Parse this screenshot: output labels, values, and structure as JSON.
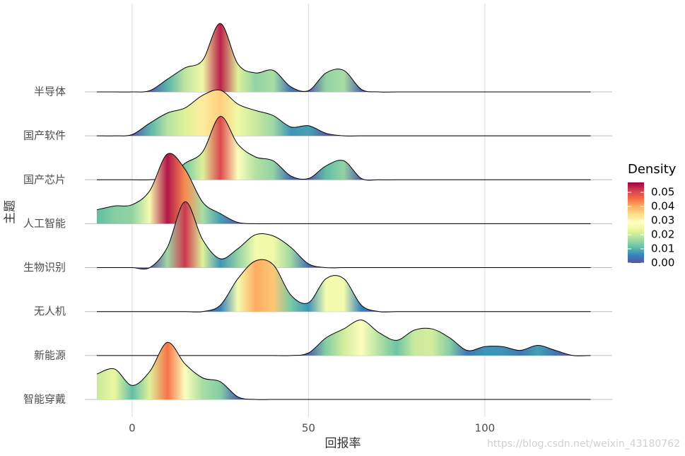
{
  "chart_data": {
    "type": "ridgeline",
    "x_label": "回报率",
    "y_label": "主题",
    "x": [
      -10,
      -5,
      0,
      5,
      10,
      15,
      20,
      25,
      30,
      35,
      40,
      45,
      50,
      55,
      60,
      65,
      70,
      75,
      80,
      85,
      90,
      95,
      100,
      105,
      110,
      115,
      120,
      125,
      130
    ],
    "series": [
      {
        "name": "半导体",
        "values": [
          0,
          0,
          0,
          0.001,
          0.01,
          0.019,
          0.025,
          0.054,
          0.022,
          0.015,
          0.017,
          0.004,
          0.001,
          0.015,
          0.017,
          0.002,
          0,
          0,
          0,
          0,
          0,
          0,
          0,
          0,
          0,
          0,
          0,
          0,
          0
        ]
      },
      {
        "name": "国产软件",
        "values": [
          0,
          0,
          0.001,
          0.01,
          0.018,
          0.022,
          0.032,
          0.036,
          0.025,
          0.02,
          0.016,
          0.007,
          0.008,
          0.002,
          0,
          0,
          0,
          0,
          0,
          0,
          0,
          0,
          0,
          0,
          0,
          0,
          0,
          0,
          0
        ]
      },
      {
        "name": "国产芯片",
        "values": [
          0,
          0,
          0,
          0,
          0.002,
          0.013,
          0.022,
          0.05,
          0.028,
          0.018,
          0.015,
          0.003,
          0.001,
          0.011,
          0.015,
          0.001,
          0,
          0,
          0,
          0,
          0,
          0,
          0,
          0,
          0,
          0,
          0,
          0,
          0
        ]
      },
      {
        "name": "人工智能",
        "values": [
          0.011,
          0.014,
          0.015,
          0.026,
          0.055,
          0.043,
          0.017,
          0.008,
          0.001,
          0,
          0,
          0,
          0,
          0,
          0,
          0,
          0,
          0,
          0,
          0,
          0,
          0,
          0,
          0,
          0,
          0,
          0,
          0,
          0
        ]
      },
      {
        "name": "生物识别",
        "values": [
          0,
          0,
          0,
          0,
          0.016,
          0.052,
          0.022,
          0.007,
          0.015,
          0.026,
          0.025,
          0.016,
          0.003,
          0,
          0,
          0,
          0,
          0,
          0,
          0,
          0,
          0,
          0,
          0,
          0,
          0,
          0,
          0,
          0
        ]
      },
      {
        "name": "无人机",
        "values": [
          0,
          0,
          0,
          0,
          0,
          0,
          0,
          0.005,
          0.026,
          0.04,
          0.037,
          0.013,
          0.007,
          0.026,
          0.026,
          0.005,
          0,
          0,
          0,
          0,
          0,
          0,
          0,
          0,
          0,
          0,
          0,
          0,
          0
        ]
      },
      {
        "name": "新能源",
        "values": [
          0,
          0,
          0,
          0,
          0,
          0,
          0,
          0,
          0,
          0,
          0,
          0,
          0.002,
          0.014,
          0.021,
          0.028,
          0.018,
          0.012,
          0.02,
          0.021,
          0.014,
          0.004,
          0.007,
          0.007,
          0.004,
          0.008,
          0.004,
          0,
          0
        ]
      },
      {
        "name": "智能穿戴",
        "values": [
          0.02,
          0.024,
          0.011,
          0.022,
          0.045,
          0.028,
          0.017,
          0.014,
          0.002,
          0,
          0,
          0,
          0,
          0,
          0,
          0,
          0,
          0,
          0,
          0,
          0,
          0,
          0,
          0,
          0,
          0,
          0,
          0,
          0
        ]
      }
    ],
    "xlim": [
      -13.4,
      136.1
    ],
    "xticks": [
      0,
      50,
      100
    ],
    "grid": true,
    "colorbar": {
      "title": "Density",
      "lim": [
        0,
        0.057
      ],
      "ticks": [
        {
          "value": 0,
          "label": "0.00"
        },
        {
          "value": 0.01,
          "label": "0.01"
        },
        {
          "value": 0.02,
          "label": "0.02"
        },
        {
          "value": 0.03,
          "label": "0.03"
        },
        {
          "value": 0.04,
          "label": "0.04"
        },
        {
          "value": 0.05,
          "label": "0.05"
        }
      ],
      "colors": [
        "#5E4FA2",
        "#3288BD",
        "#66C2A5",
        "#ABDDA4",
        "#E6F598",
        "#FFFFBF",
        "#FEE08B",
        "#FDAE61",
        "#F46D43",
        "#D53E4F",
        "#9E0142"
      ]
    },
    "watermark": "https://blog.csdn.net/weixin_43180762"
  }
}
